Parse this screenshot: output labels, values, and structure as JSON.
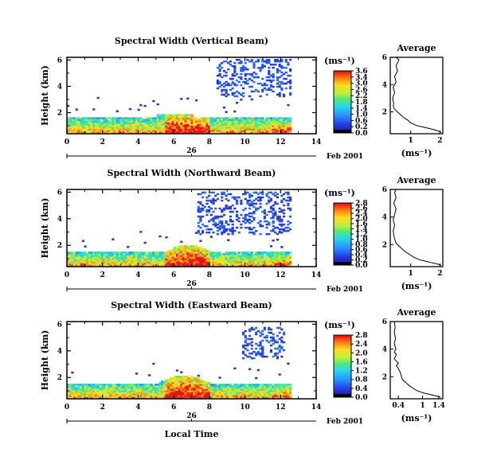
{
  "panels": [
    {
      "title": "Spectral Width (Vertical Beam)",
      "ylabel": "Height (km)",
      "yticks": [
        2,
        4,
        6
      ],
      "ylim": [
        0.4,
        6.2
      ],
      "xticks": [
        0,
        2,
        4,
        6,
        8,
        10,
        12,
        14
      ],
      "xlim": [
        0,
        14
      ],
      "date_label": "26",
      "month_label": "Feb 2001",
      "colorbar": {
        "unit": "(ms⁻¹)",
        "labels": [
          "3.6",
          "3.4",
          "3.0",
          "2.6",
          "2.2",
          "1.8",
          "1.4",
          "1.0",
          "0.6",
          "0.2",
          "0.0"
        ]
      },
      "average": {
        "title": "Average",
        "xlabel": "(ms⁻¹)",
        "xticks": [
          "1",
          "2"
        ],
        "yticks": [
          "2",
          "4",
          "6"
        ],
        "xlim": [
          0.3,
          2.1
        ],
        "ylim": [
          0.4,
          6.0
        ],
        "profile": [
          [
            2.05,
            0.5
          ],
          [
            1.95,
            0.6
          ],
          [
            1.8,
            0.7
          ],
          [
            1.6,
            0.8
          ],
          [
            1.4,
            0.9
          ],
          [
            1.2,
            1.0
          ],
          [
            1.0,
            1.2
          ],
          [
            0.9,
            1.4
          ],
          [
            0.75,
            1.6
          ],
          [
            0.65,
            1.8
          ],
          [
            0.55,
            2.0
          ],
          [
            0.45,
            2.2
          ],
          [
            0.4,
            2.4
          ],
          [
            0.42,
            2.6
          ],
          [
            0.38,
            3.0
          ],
          [
            0.45,
            3.4
          ],
          [
            0.4,
            3.8
          ],
          [
            0.5,
            4.2
          ],
          [
            0.45,
            4.6
          ],
          [
            0.55,
            5.0
          ],
          [
            0.5,
            5.4
          ],
          [
            0.6,
            5.8
          ],
          [
            0.5,
            6.0
          ]
        ]
      }
    },
    {
      "title": "Spectral Width (Northward Beam)",
      "ylabel": "Height (km)",
      "yticks": [
        2,
        4,
        6
      ],
      "ylim": [
        0.4,
        6.2
      ],
      "xticks": [
        0,
        2,
        4,
        6,
        8,
        10,
        12,
        14
      ],
      "xlim": [
        0,
        14
      ],
      "date_label": "26",
      "month_label": "Feb 2001",
      "colorbar": {
        "unit": "(ms⁻¹)",
        "labels": [
          "2.8",
          "2.6",
          "2.4",
          "2.0",
          "1.6",
          "1.4",
          "1.2",
          "1.0",
          "0.8",
          "0.6",
          "0.4",
          "0.2",
          "0.0"
        ]
      },
      "average": {
        "title": "Average",
        "xlabel": "(ms⁻¹)",
        "xticks": [
          "1",
          "2"
        ],
        "yticks": [
          "2",
          "4",
          "6"
        ],
        "xlim": [
          0.3,
          2.1
        ],
        "ylim": [
          0.4,
          6.0
        ],
        "profile": [
          [
            2.05,
            0.5
          ],
          [
            1.9,
            0.6
          ],
          [
            1.7,
            0.7
          ],
          [
            1.5,
            0.8
          ],
          [
            1.3,
            0.9
          ],
          [
            1.1,
            1.1
          ],
          [
            0.95,
            1.3
          ],
          [
            0.8,
            1.5
          ],
          [
            0.7,
            1.7
          ],
          [
            0.6,
            1.9
          ],
          [
            0.5,
            2.1
          ],
          [
            0.45,
            2.4
          ],
          [
            0.42,
            2.7
          ],
          [
            0.4,
            3.0
          ],
          [
            0.45,
            3.4
          ],
          [
            0.4,
            3.8
          ],
          [
            0.45,
            4.2
          ],
          [
            0.5,
            4.6
          ],
          [
            0.42,
            5.0
          ],
          [
            0.5,
            5.4
          ],
          [
            0.45,
            5.8
          ],
          [
            0.5,
            6.0
          ]
        ]
      }
    },
    {
      "title": "Spectral Width (Eastward Beam)",
      "ylabel": "Height (km)",
      "yticks": [
        2,
        4,
        6
      ],
      "ylim": [
        0.4,
        6.2
      ],
      "xticks": [
        0,
        2,
        4,
        6,
        8,
        10,
        12,
        14
      ],
      "xlim": [
        0,
        14
      ],
      "date_label": "26",
      "month_label": "Feb 2001",
      "xlabel": "Local Time",
      "colorbar": {
        "unit": "(ms⁻¹)",
        "labels": [
          "2.8",
          "2.4",
          "2.0",
          "1.6",
          "1.2",
          "0.8",
          "0.4",
          "0.0"
        ]
      },
      "average": {
        "title": "Average",
        "xlabel": "(ms⁻¹)",
        "xticks": [
          "0.4",
          "1",
          "1.4"
        ],
        "yticks": [
          "2",
          "4",
          "6"
        ],
        "xlim": [
          0.2,
          1.5
        ],
        "ylim": [
          0.4,
          6.0
        ],
        "profile": [
          [
            1.45,
            0.5
          ],
          [
            1.35,
            0.6
          ],
          [
            1.2,
            0.7
          ],
          [
            1.05,
            0.8
          ],
          [
            0.95,
            0.9
          ],
          [
            0.85,
            1.0
          ],
          [
            0.75,
            1.2
          ],
          [
            0.65,
            1.4
          ],
          [
            0.58,
            1.6
          ],
          [
            0.5,
            1.8
          ],
          [
            0.48,
            2.0
          ],
          [
            0.45,
            2.3
          ],
          [
            0.4,
            2.6
          ],
          [
            0.35,
            2.8
          ],
          [
            0.4,
            3.0
          ],
          [
            0.3,
            3.3
          ],
          [
            0.35,
            3.6
          ],
          [
            0.3,
            3.8
          ],
          [
            0.34,
            4.0
          ],
          [
            0.3,
            4.4
          ],
          [
            0.33,
            4.8
          ],
          [
            0.3,
            5.2
          ],
          [
            0.32,
            5.6
          ],
          [
            0.3,
            6.0
          ]
        ]
      }
    }
  ],
  "chart_data": [
    {
      "type": "heatmap",
      "title": "Spectral Width (Vertical Beam)",
      "xlabel": "",
      "ylabel": "Height (km)",
      "x_range": [
        0,
        14
      ],
      "y_range": [
        0.4,
        6.2
      ],
      "data_x_extent": [
        0,
        12.5
      ],
      "color_range": [
        0.0,
        3.6
      ],
      "main_layer_top_km": 1.6,
      "upper_echo_region": {
        "x": [
          8.3,
          12.8
        ],
        "y": [
          3.2,
          6.0
        ]
      },
      "colormap": "rainbow (blue low, red high)"
    },
    {
      "type": "heatmap",
      "title": "Spectral Width (Northward Beam)",
      "xlabel": "",
      "ylabel": "Height (km)",
      "x_range": [
        0,
        14
      ],
      "y_range": [
        0.4,
        6.2
      ],
      "data_x_extent": [
        0,
        12.5
      ],
      "color_range": [
        0.0,
        2.8
      ],
      "main_layer_top_km": 1.5,
      "upper_echo_region": {
        "x": [
          7.3,
          12.5
        ],
        "y": [
          2.8,
          6.0
        ]
      },
      "colormap": "rainbow (blue low, red high)"
    },
    {
      "type": "heatmap",
      "title": "Spectral Width (Eastward Beam)",
      "xlabel": "Local Time",
      "ylabel": "Height (km)",
      "x_range": [
        0,
        14
      ],
      "y_range": [
        0.4,
        6.2
      ],
      "data_x_extent": [
        0,
        12.5
      ],
      "color_range": [
        0.0,
        2.8
      ],
      "main_layer_top_km": 1.5,
      "upper_echo_region": {
        "x": [
          9.8,
          12.2
        ],
        "y": [
          3.4,
          5.8
        ]
      },
      "colormap": "rainbow (blue low, red high)"
    },
    {
      "type": "line",
      "title": "Average",
      "xlabel": "(ms⁻¹)",
      "ylabel": "",
      "x_range": [
        0.3,
        2.1
      ],
      "y_range": [
        0.4,
        6.0
      ],
      "series": [
        {
          "x": [
            2.05,
            1.95,
            1.8,
            1.6,
            1.4,
            1.2,
            1.0,
            0.9,
            0.75,
            0.65,
            0.55,
            0.45,
            0.4,
            0.42,
            0.38,
            0.45,
            0.4,
            0.5,
            0.45,
            0.55,
            0.5,
            0.6,
            0.5
          ],
          "y": [
            0.5,
            0.6,
            0.7,
            0.8,
            0.9,
            1.0,
            1.2,
            1.4,
            1.6,
            1.8,
            2.0,
            2.2,
            2.4,
            2.6,
            3.0,
            3.4,
            3.8,
            4.2,
            4.6,
            5.0,
            5.4,
            5.8,
            6.0
          ]
        }
      ]
    },
    {
      "type": "line",
      "title": "Average",
      "xlabel": "(ms⁻¹)",
      "ylabel": "",
      "x_range": [
        0.3,
        2.1
      ],
      "y_range": [
        0.4,
        6.0
      ],
      "series": [
        {
          "x": [
            2.05,
            1.9,
            1.7,
            1.5,
            1.3,
            1.1,
            0.95,
            0.8,
            0.7,
            0.6,
            0.5,
            0.45,
            0.42,
            0.4,
            0.45,
            0.4,
            0.45,
            0.5,
            0.42,
            0.5,
            0.45,
            0.5
          ],
          "y": [
            0.5,
            0.6,
            0.7,
            0.8,
            0.9,
            1.1,
            1.3,
            1.5,
            1.7,
            1.9,
            2.1,
            2.4,
            2.7,
            3.0,
            3.4,
            3.8,
            4.2,
            4.6,
            5.0,
            5.4,
            5.8,
            6.0
          ]
        }
      ]
    },
    {
      "type": "line",
      "title": "Average",
      "xlabel": "(ms⁻¹)",
      "ylabel": "",
      "x_range": [
        0.2,
        1.5
      ],
      "y_range": [
        0.4,
        6.0
      ],
      "series": [
        {
          "x": [
            1.45,
            1.35,
            1.2,
            1.05,
            0.95,
            0.85,
            0.75,
            0.65,
            0.58,
            0.5,
            0.48,
            0.45,
            0.4,
            0.35,
            0.4,
            0.3,
            0.35,
            0.3,
            0.34,
            0.3,
            0.33,
            0.3,
            0.32,
            0.3
          ],
          "y": [
            0.5,
            0.6,
            0.7,
            0.8,
            0.9,
            1.0,
            1.2,
            1.4,
            1.6,
            1.8,
            2.0,
            2.3,
            2.6,
            2.8,
            3.0,
            3.3,
            3.6,
            3.8,
            4.0,
            4.4,
            4.8,
            5.2,
            5.6,
            6.0
          ]
        }
      ]
    }
  ]
}
